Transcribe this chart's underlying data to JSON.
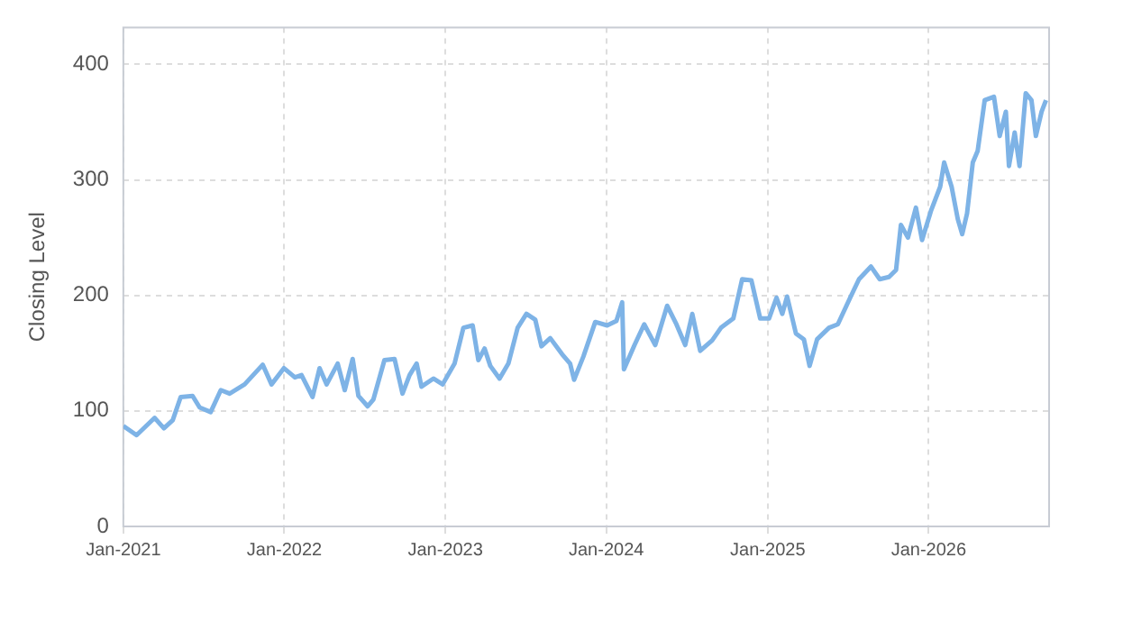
{
  "chart_data": {
    "type": "line",
    "ylabel": "Closing Level",
    "grid": true,
    "legend": false,
    "marker": "none",
    "line_style": "solid",
    "xlim": [
      "2021-01-01",
      "2026-10-01"
    ],
    "ylim": [
      0,
      432
    ],
    "yticks": [
      0,
      100,
      200,
      300,
      400
    ],
    "xticks": [
      {
        "value": "2021-01-01",
        "label": "Jan-2021"
      },
      {
        "value": "2022-01-01",
        "label": "Jan-2022"
      },
      {
        "value": "2023-01-01",
        "label": "Jan-2023"
      },
      {
        "value": "2024-01-01",
        "label": "Jan-2024"
      },
      {
        "value": "2025-01-01",
        "label": "Jan-2025"
      },
      {
        "value": "2026-01-01",
        "label": "Jan-2026"
      }
    ],
    "x": [
      "2021-01-01",
      "2021-01-31",
      "2021-03-13",
      "2021-04-03",
      "2021-04-23",
      "2021-05-11",
      "2021-06-07",
      "2021-06-23",
      "2021-07-18",
      "2021-08-10",
      "2021-08-30",
      "2021-10-03",
      "2021-11-13",
      "2021-12-03",
      "2021-12-31",
      "2022-01-25",
      "2022-02-09",
      "2022-03-06",
      "2022-03-22",
      "2022-04-07",
      "2022-05-02",
      "2022-05-18",
      "2022-06-05",
      "2022-06-18",
      "2022-07-09",
      "2022-07-22",
      "2022-08-16",
      "2022-09-08",
      "2022-09-26",
      "2022-10-12",
      "2022-10-28",
      "2022-11-08",
      "2022-12-05",
      "2022-12-26",
      "2023-01-22",
      "2023-02-11",
      "2023-03-04",
      "2023-03-17",
      "2023-03-31",
      "2023-04-13",
      "2023-05-04",
      "2023-05-24",
      "2023-06-14",
      "2023-07-04",
      "2023-07-24",
      "2023-08-07",
      "2023-08-27",
      "2023-09-23",
      "2023-10-11",
      "2023-10-20",
      "2023-11-10",
      "2023-12-07",
      "2024-01-03",
      "2024-01-24",
      "2024-02-06",
      "2024-02-10",
      "2024-03-05",
      "2024-03-27",
      "2024-04-21",
      "2024-05-18",
      "2024-06-08",
      "2024-06-28",
      "2024-07-14",
      "2024-08-01",
      "2024-08-28",
      "2024-09-17",
      "2024-10-15",
      "2024-11-04",
      "2024-11-25",
      "2024-12-15",
      "2025-01-04",
      "2025-01-21",
      "2025-02-03",
      "2025-02-14",
      "2025-03-06",
      "2025-03-24",
      "2025-04-06",
      "2025-04-23",
      "2025-05-20",
      "2025-06-09",
      "2025-07-07",
      "2025-07-27",
      "2025-08-23",
      "2025-09-12",
      "2025-10-03",
      "2025-10-19",
      "2025-10-30",
      "2025-11-15",
      "2025-12-03",
      "2025-12-17",
      "2026-01-06",
      "2026-01-27",
      "2026-02-05",
      "2026-02-22",
      "2026-03-08",
      "2026-03-18",
      "2026-03-29",
      "2026-04-11",
      "2026-04-22",
      "2026-05-08",
      "2026-05-29",
      "2026-06-11",
      "2026-06-25",
      "2026-07-02",
      "2026-07-15",
      "2026-07-26",
      "2026-08-09",
      "2026-08-22",
      "2026-09-01",
      "2026-09-14",
      "2026-09-24"
    ],
    "series": [
      {
        "color": "#7eb3e6",
        "values": [
          87,
          79,
          94,
          85,
          92,
          112,
          113,
          103,
          99,
          118,
          115,
          123,
          140,
          123,
          137,
          129,
          131,
          112,
          137,
          123,
          141,
          118,
          145,
          113,
          104,
          110,
          144,
          145,
          115,
          131,
          141,
          121,
          128,
          123,
          141,
          172,
          174,
          144,
          154,
          139,
          128,
          141,
          172,
          184,
          179,
          156,
          163,
          149,
          141,
          127,
          147,
          177,
          174,
          178,
          194,
          136,
          157,
          175,
          157,
          191,
          175,
          157,
          184,
          152,
          161,
          172,
          180,
          214,
          213,
          180,
          180,
          198,
          184,
          199,
          167,
          162,
          139,
          162,
          172,
          175,
          198,
          214,
          225,
          214,
          216,
          222,
          261,
          250,
          276,
          248,
          273,
          294,
          315,
          294,
          266,
          253,
          271,
          315,
          325,
          369,
          372,
          338,
          359,
          312,
          341,
          312,
          375,
          369,
          338,
          359,
          369
        ]
      }
    ]
  }
}
